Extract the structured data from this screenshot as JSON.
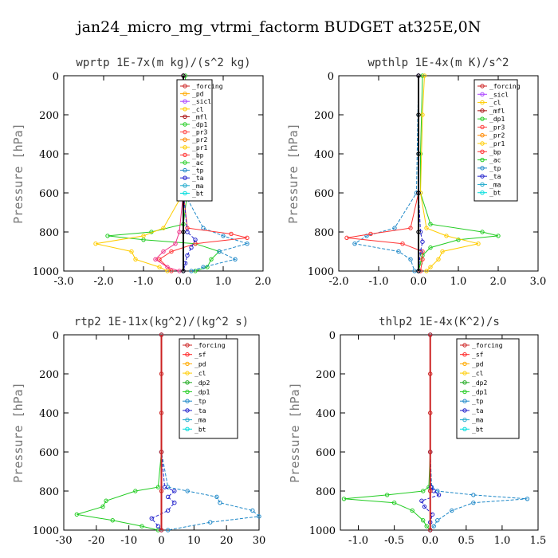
{
  "figure_title": "jan24_micro_mg_vtrmi_factorm  BUDGET at325E,0N",
  "chart_data": [
    {
      "type": "line",
      "title": "wprtp  1E-7x(m kg)/(s^2 kg)",
      "ylabel": "Pressure [hPa]",
      "xlim": [
        -3,
        2
      ],
      "ylim": [
        1000,
        0
      ],
      "xticks": [
        "-3.0",
        "-2.0",
        "-1.0",
        "0.0",
        "1.0",
        "2.0"
      ],
      "yticks": [
        "0",
        "200",
        "400",
        "600",
        "800",
        "1000"
      ],
      "legend_position": "top-right",
      "legend": [
        "_forcing",
        "_pd",
        "_sicl",
        "_cl",
        "_mfl",
        "_dp1",
        "_pr3",
        "_pr2",
        "_pr1",
        "_bp",
        "_ac",
        "_tp",
        "_ta",
        "_ma",
        "_bt"
      ],
      "series": [
        {
          "name": "_ac",
          "color": "#22cc22",
          "y": [
            0,
            400,
            600,
            760,
            800,
            820,
            840,
            860,
            900,
            940,
            980,
            1000
          ],
          "x": [
            0.05,
            0.08,
            0.1,
            0.0,
            -0.8,
            -1.9,
            -1.0,
            0.3,
            0.9,
            0.7,
            0.6,
            0.3
          ]
        },
        {
          "name": "_pr1",
          "color": "#ffcc00",
          "y": [
            0,
            600,
            780,
            820,
            860,
            900,
            940,
            980,
            1000
          ],
          "x": [
            0.0,
            0.0,
            -0.5,
            -1.0,
            -2.2,
            -1.3,
            -1.2,
            -0.6,
            -0.4
          ]
        },
        {
          "name": "_tp",
          "color": "#1e88c8",
          "y": [
            0,
            600,
            780,
            820,
            860,
            900,
            940,
            980,
            1000
          ],
          "x": [
            0.0,
            0.02,
            0.5,
            1.0,
            1.6,
            0.9,
            1.3,
            0.5,
            0.2
          ]
        },
        {
          "name": "_bp",
          "color": "#ff3333",
          "y": [
            0,
            600,
            780,
            810,
            830,
            860,
            900,
            940,
            1000
          ],
          "x": [
            0.0,
            0.0,
            0.1,
            1.2,
            1.6,
            0.3,
            -0.3,
            -0.6,
            -0.3
          ]
        },
        {
          "name": "_ta",
          "color": "#2222cc",
          "y": [
            0,
            600,
            800,
            840,
            880,
            920,
            960,
            1000
          ],
          "x": [
            0.0,
            0.0,
            0.1,
            0.3,
            0.2,
            0.1,
            0.05,
            0.0
          ]
        },
        {
          "name": "_dp1",
          "color": "#ee3388",
          "y": [
            0,
            600,
            800,
            860,
            900,
            940,
            980,
            1000
          ],
          "x": [
            0.0,
            0.0,
            -0.1,
            -0.2,
            -0.5,
            -0.7,
            -0.4,
            -0.1
          ]
        },
        {
          "name": "_forcing",
          "color": "#000000",
          "y": [
            0,
            200,
            400,
            600,
            800,
            1000
          ],
          "x": [
            0.0,
            0.0,
            0.0,
            0.0,
            0.0,
            0.0
          ]
        }
      ]
    },
    {
      "type": "line",
      "title": "wpthlp  1E-4x(m K)/s^2",
      "ylabel": "Pressure [hPa]",
      "xlim": [
        -2,
        3
      ],
      "ylim": [
        1000,
        0
      ],
      "xticks": [
        "-2.0",
        "-1.0",
        "0.0",
        "1.0",
        "2.0",
        "3.0"
      ],
      "yticks": [
        "0",
        "200",
        "400",
        "600",
        "800",
        "1000"
      ],
      "legend_position": "top-right",
      "legend": [
        "_forcing",
        "_sicl",
        "_cl",
        "_mfl",
        "_dp1",
        "_pr3",
        "_pr2",
        "_pr1",
        "_bp",
        "_ac",
        "_tp",
        "_ta",
        "_ma",
        "_bt"
      ],
      "series": [
        {
          "name": "_ac",
          "color": "#22cc22",
          "y": [
            0,
            400,
            600,
            760,
            800,
            820,
            840,
            880,
            920,
            960,
            1000
          ],
          "x": [
            0.1,
            0.05,
            0.05,
            0.3,
            1.6,
            2.0,
            1.0,
            0.3,
            0.1,
            0.05,
            0.0
          ]
        },
        {
          "name": "_pr1",
          "color": "#ffcc00",
          "y": [
            0,
            200,
            600,
            780,
            820,
            860,
            900,
            940,
            980,
            1000
          ],
          "x": [
            0.15,
            0.1,
            0.05,
            0.2,
            0.7,
            1.5,
            0.6,
            0.5,
            0.3,
            0.2
          ]
        },
        {
          "name": "_tp",
          "color": "#1e88c8",
          "y": [
            0,
            600,
            780,
            820,
            860,
            900,
            940,
            1000
          ],
          "x": [
            0.0,
            -0.05,
            -0.6,
            -1.3,
            -1.6,
            -0.5,
            -0.2,
            -0.1
          ]
        },
        {
          "name": "_bp",
          "color": "#ff3333",
          "y": [
            0,
            600,
            780,
            810,
            830,
            860,
            900,
            940,
            1000
          ],
          "x": [
            0.0,
            0.0,
            -0.2,
            -1.2,
            -1.8,
            -0.4,
            0.1,
            0.1,
            0.05
          ]
        },
        {
          "name": "_ta",
          "color": "#2222cc",
          "y": [
            0,
            600,
            800,
            850,
            900,
            1000
          ],
          "x": [
            0.0,
            0.0,
            0.05,
            0.1,
            0.05,
            0.0
          ]
        },
        {
          "name": "_forcing",
          "color": "#000000",
          "y": [
            0,
            200,
            400,
            600,
            800,
            1000
          ],
          "x": [
            0.0,
            0.0,
            0.0,
            0.0,
            0.0,
            0.0
          ]
        }
      ]
    },
    {
      "type": "line",
      "title": "rtp2  1E-11x(kg^2)/(kg^2 s)",
      "ylabel": "Pressure [hPa]",
      "xlim": [
        -30,
        30
      ],
      "ylim": [
        1000,
        0
      ],
      "xticks": [
        "-30",
        "-20",
        "-10",
        "0",
        "10",
        "20",
        "30"
      ],
      "yticks": [
        "0",
        "200",
        "400",
        "600",
        "800",
        "1000"
      ],
      "legend_position": "top-right",
      "legend": [
        "_forcing",
        "_sf",
        "_pd",
        "_cl",
        "_dp2",
        "_dp1",
        "_tp",
        "_ta",
        "_ma",
        "_bt"
      ],
      "series": [
        {
          "name": "_dp1",
          "color": "#22cc22",
          "y": [
            0,
            600,
            780,
            800,
            850,
            880,
            920,
            950,
            980,
            1000
          ],
          "x": [
            0,
            0,
            -1,
            -8,
            -17,
            -18,
            -26,
            -15,
            -6,
            -1
          ]
        },
        {
          "name": "_tp",
          "color": "#1e88c8",
          "y": [
            0,
            600,
            780,
            800,
            830,
            860,
            900,
            930,
            960,
            1000
          ],
          "x": [
            0,
            0,
            2,
            8,
            17,
            18,
            28,
            30,
            15,
            2
          ]
        },
        {
          "name": "_ta",
          "color": "#2222cc",
          "y": [
            0,
            600,
            780,
            800,
            830,
            860,
            900,
            940,
            980,
            1000
          ],
          "x": [
            0,
            0,
            1,
            4,
            2,
            4,
            2,
            -3,
            -1,
            0
          ]
        },
        {
          "name": "_forcing",
          "color": "#cc2222",
          "y": [
            0,
            200,
            400,
            600,
            800,
            1000
          ],
          "x": [
            0,
            0,
            0,
            0,
            0,
            0
          ]
        }
      ]
    },
    {
      "type": "line",
      "title": "thlp2  1E-4x(K^2)/s",
      "ylabel": "Pressure [hPa]",
      "xlim": [
        -1.25,
        1.5
      ],
      "ylim": [
        1000,
        0
      ],
      "xticks": [
        "-1.0",
        "-0.5",
        "0.0",
        "0.5",
        "1.0",
        "1.5"
      ],
      "yticks": [
        "0",
        "200",
        "400",
        "600",
        "800",
        "1000"
      ],
      "legend_position": "top-right",
      "legend": [
        "_forcing",
        "_sf",
        "_pd",
        "_cl",
        "_dp2",
        "_dp1",
        "_tp",
        "_ta",
        "_ma",
        "_bt"
      ],
      "series": [
        {
          "name": "_dp1",
          "color": "#22cc22",
          "y": [
            0,
            600,
            780,
            800,
            820,
            840,
            860,
            900,
            950,
            980,
            1000
          ],
          "x": [
            0,
            0,
            -0.02,
            -0.1,
            -0.6,
            -1.2,
            -0.5,
            -0.25,
            -0.1,
            -0.05,
            0
          ]
        },
        {
          "name": "_tp",
          "color": "#1e88c8",
          "y": [
            0,
            600,
            780,
            800,
            820,
            840,
            860,
            900,
            950,
            980,
            1000
          ],
          "x": [
            0,
            0,
            0.02,
            0.1,
            0.6,
            1.35,
            0.6,
            0.3,
            0.1,
            0.05,
            0
          ]
        },
        {
          "name": "_ta",
          "color": "#2222cc",
          "y": [
            0,
            600,
            780,
            800,
            820,
            850,
            880,
            920,
            960,
            1000
          ],
          "x": [
            0,
            0,
            0.01,
            0.05,
            0.12,
            -0.12,
            -0.08,
            0.03,
            0.0,
            0
          ]
        },
        {
          "name": "_forcing",
          "color": "#cc2222",
          "y": [
            0,
            200,
            400,
            600,
            800,
            1000
          ],
          "x": [
            0,
            0,
            0,
            0,
            0,
            0
          ]
        }
      ]
    }
  ],
  "colors": {
    "_forcing": "#cc2222",
    "_sf": "#ff2222",
    "_pd": "#ffaa00",
    "_sicl": "#aa44ff",
    "_cl": "#ffcc00",
    "_mfl": "#aa1111",
    "_dp2": "#22aa22",
    "_dp1": "#22cc22",
    "_pr3": "#ff4444",
    "_pr2": "#ff8800",
    "_pr1": "#ffcc00",
    "_bp": "#ff3333",
    "_ac": "#22cc22",
    "_tp": "#1e88c8",
    "_ta": "#2222cc",
    "_ma": "#22aacc",
    "_bt": "#00dddd"
  }
}
